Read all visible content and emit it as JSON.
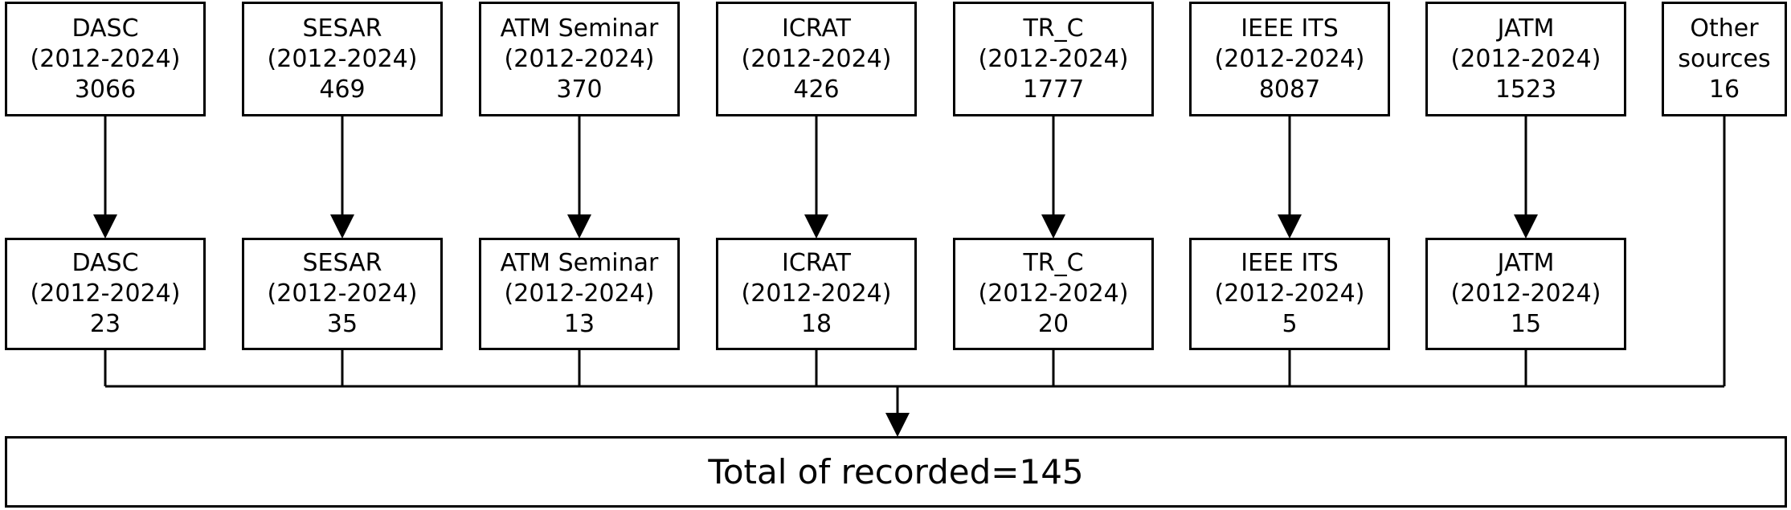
{
  "top_row": [
    {
      "name": "DASC",
      "years": "(2012-2024)",
      "count": "3066"
    },
    {
      "name": "SESAR",
      "years": "(2012-2024)",
      "count": "469"
    },
    {
      "name": "ATM Seminar",
      "years": "(2012-2024)",
      "count": "370"
    },
    {
      "name": "ICRAT",
      "years": "(2012-2024)",
      "count": "426"
    },
    {
      "name": "TR_C",
      "years": "(2012-2024)",
      "count": "1777"
    },
    {
      "name": "IEEE ITS",
      "years": "(2012-2024)",
      "count": "8087"
    },
    {
      "name": "JATM",
      "years": "(2012-2024)",
      "count": "1523"
    }
  ],
  "other_sources": {
    "line1": "Other",
    "line2": "sources",
    "count": "16"
  },
  "bottom_row": [
    {
      "name": "DASC",
      "years": "(2012-2024)",
      "count": "23"
    },
    {
      "name": "SESAR",
      "years": "(2012-2024)",
      "count": "35"
    },
    {
      "name": "ATM Seminar",
      "years": "(2012-2024)",
      "count": "13"
    },
    {
      "name": "ICRAT",
      "years": "(2012-2024)",
      "count": "18"
    },
    {
      "name": "TR_C",
      "years": "(2012-2024)",
      "count": "20"
    },
    {
      "name": "IEEE ITS",
      "years": "(2012-2024)",
      "count": "5"
    },
    {
      "name": "JATM",
      "years": "(2012-2024)",
      "count": "15"
    }
  ],
  "total": {
    "label": "Total of recorded=145"
  }
}
